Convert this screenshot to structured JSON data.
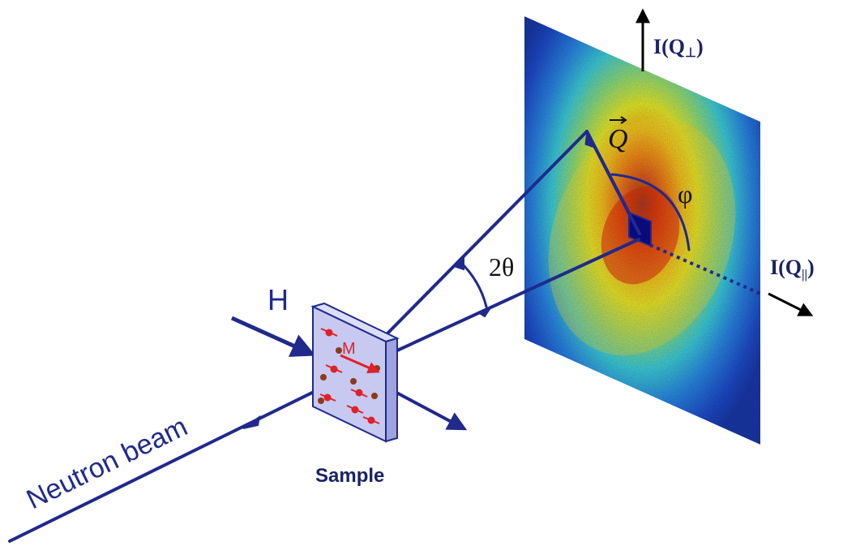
{
  "labels": {
    "neutron_beam": "Neutron beam",
    "field": "H",
    "magnetization": "M",
    "sample": "Sample",
    "scattering_angle": "2θ",
    "azimuth": "φ",
    "q_vector": "Q",
    "q_perp_label": "I(Q",
    "q_perp_sub": "⊥",
    "q_par_label": "I(Q",
    "q_par_sub": "||",
    "paren_close": ")"
  },
  "colors": {
    "beam_blue": "#1f2a8c",
    "sample_face": "#c7c9f0",
    "sample_side": "#9ea2dd",
    "particle_red": "#e0202a",
    "particle_brown": "#8b3a1a",
    "text_dark": "#1a2266"
  }
}
